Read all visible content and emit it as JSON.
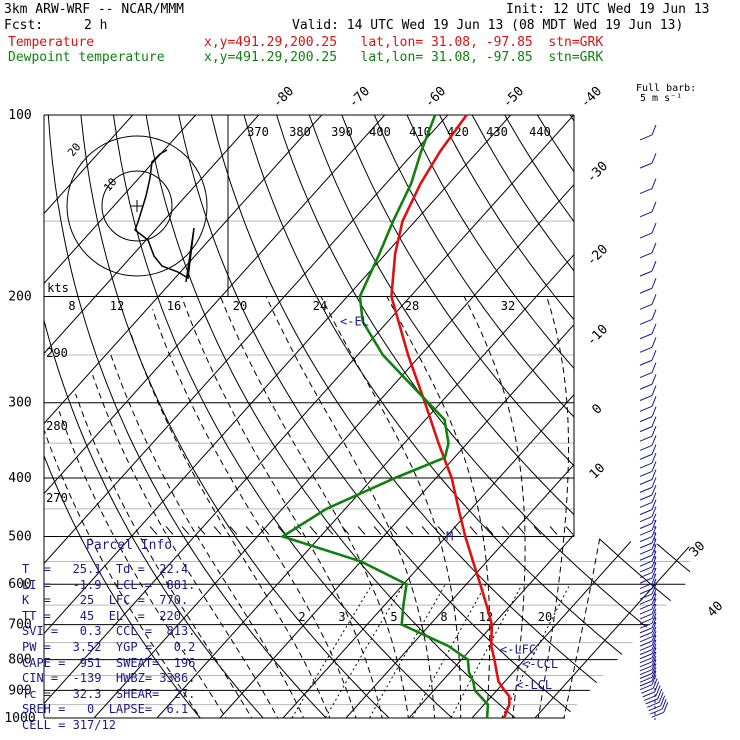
{
  "header": {
    "model": "3km ARW-WRF -- NCAR/MMM",
    "init": "Init: 12 UTC Wed 19 Jun 13",
    "fcst_label": "Fcst:",
    "fcst_value": "2 h",
    "valid": "Valid: 14 UTC Wed 19 Jun 13 (08 MDT Wed 19 Jun 13)",
    "temp_label": "Temperature",
    "temp_info": "x,y=491.29,200.25   lat,lon= 31.08, -97.85  stn=GRK",
    "dew_label": "Dewpoint temperature",
    "dew_info": "x,y=491.29,200.25   lat,lon= 31.08, -97.85  stn=GRK",
    "barb_title": "Full barb:",
    "barb_units": "5 m s⁻¹"
  },
  "colors": {
    "temperature": "#e01010",
    "dewpoint": "#108010",
    "parcel": "#1a1a8a",
    "isobar": "#000000"
  },
  "parcel": {
    "title": "Parcel Info",
    "rows": [
      "T  =   25.1  Td =  22.4",
      "LI =   -1.9  LCL =  881.",
      "K  =    25  LFC =  770.",
      "TT =    45  EL  =  220.",
      "SVI =   0.3  CCL =  813.",
      "PW =   3.52  YGP =   0.2",
      "CAPE =  951  SWEAT=  196",
      "CIN =  -139  HWBZ= 3386.",
      "Tc =   32.3  SHEAR=  27.",
      "SREH =   0  LAPSE=  6.1",
      "CELL = 317/12"
    ]
  },
  "chart_data": {
    "type": "line",
    "title": "",
    "xlabel": "",
    "ylabel": "",
    "pressure_levels": [
      100,
      200,
      300,
      400,
      500,
      600,
      700,
      800,
      900,
      1000
    ],
    "isotherm_labels": [
      -80,
      -70,
      -60,
      -50,
      -40,
      -30,
      -20,
      -10,
      0,
      10,
      20,
      30,
      40
    ],
    "theta_labels": [
      370,
      380,
      390,
      400,
      410,
      420,
      430,
      440
    ],
    "theta_low_labels": [
      290,
      280,
      270
    ],
    "mixing_ratio_labels": [
      2,
      3,
      5,
      8,
      12,
      20
    ],
    "hodo_axis_labels": [
      8,
      12,
      16,
      20,
      24,
      28,
      32
    ],
    "hodo_units": "kts",
    "hodo_rings": [
      10,
      20
    ],
    "levels_marked": [
      {
        "label": "<-EL",
        "p": 220
      },
      {
        "label": "<-LFC",
        "p": 770
      },
      {
        "label": "<-CCL",
        "p": 813
      },
      {
        "label": "<-LCL",
        "p": 881
      },
      {
        "label": "M",
        "p": 500
      }
    ],
    "series": [
      {
        "name": "Temperature",
        "p": [
          1000,
          950,
          920,
          900,
          870,
          840,
          800,
          760,
          700,
          650,
          600,
          550,
          500,
          450,
          400,
          350,
          300,
          250,
          200,
          170,
          150,
          130,
          115,
          100
        ],
        "t": [
          25.1,
          24.0,
          22.8,
          21.2,
          19.0,
          17.4,
          15.2,
          12.8,
          9.8,
          6.2,
          2.2,
          -2.2,
          -7.0,
          -12.0,
          -17.5,
          -24.6,
          -32.5,
          -42.0,
          -53.0,
          -58.5,
          -62.0,
          -64.5,
          -66.0,
          -67.0
        ]
      },
      {
        "name": "Dewpoint temperature",
        "p": [
          1000,
          950,
          920,
          900,
          870,
          840,
          800,
          760,
          700,
          650,
          600,
          550,
          500,
          450,
          400,
          370,
          350,
          320,
          300,
          250,
          220,
          200,
          170,
          150,
          130,
          115,
          100
        ],
        "t": [
          22.4,
          20.6,
          18.2,
          16.5,
          15.0,
          13.0,
          11.0,
          6.0,
          -4.5,
          -7.0,
          -9.5,
          -20.0,
          -36.0,
          -33.0,
          -26.5,
          -21.5,
          -23.0,
          -27.0,
          -32.0,
          -46.0,
          -54.0,
          -58.0,
          -61.0,
          -63.5,
          -66.0,
          -69.0,
          -72.0
        ]
      }
    ]
  }
}
